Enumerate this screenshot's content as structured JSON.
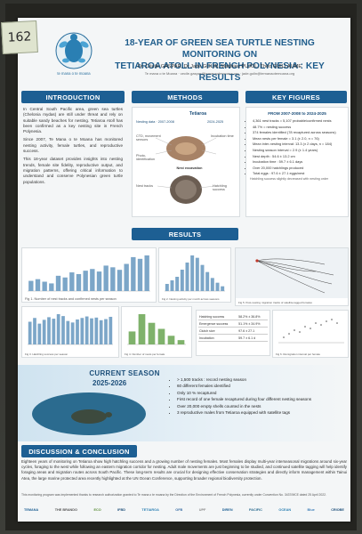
{
  "tag_number": "162",
  "poster": {
    "title_line1": "18-YEAR OF GREEN SEA TURTLE NESTING MONITORING ON",
    "title_line2": "TETIAROA ATOLL IN FRENCH POLYNESIA : KEY RESULTS",
    "authors": "Dr. Cécile GASPAR, Dr Jade GOLIN, Matthieu PUJOL, Théo GUILLAUME",
    "affiliation": "Te mana o te Moana · cecile.gaspar@temanaotemoana.org · jade.golin@temanaotemoana.org",
    "logo_caption": "te mana o te moana"
  },
  "sections": {
    "introduction": "INTRODUCTION",
    "methods": "METHODS",
    "key_figures": "KEY FIGURES",
    "results": "RESULTS",
    "current_season": "CURRENT SEASON",
    "season_years": "2025-2026",
    "discussion": "DISCUSSION & CONCLUSION"
  },
  "intro": {
    "p1": "In Central South Pacific area, green sea turtles (Chelonia mydas) are still under threat and rely on suitable sandy beaches for nesting. Tetiaroa Atoll has been confirmed as a key nesting site in French Polynesia.",
    "p2": "Since 2007, Te Mana o te Moana has monitored nesting activity, female turtles, and reproductive success.",
    "p3": "This 18-year dataset provides insights into nesting trends, female site fidelity, reproductive output, and migration patterns, offering critical information to understand and conserve Polynesian green turtle populations."
  },
  "methods": {
    "place": "Tetiaroa",
    "season_a": "Nesting data · 2007-2008",
    "season_b": "2024-2025",
    "labels": [
      "CTD, movement sensors",
      "Photo-identification",
      "Nest excavation",
      "Nest tracks",
      "Hatchling success",
      "Incubation time"
    ]
  },
  "key_figures": {
    "heading": "FROM 2007-2008 to 2024-2025",
    "items": [
      "4,361 nest tracks = 5,107 probable/confirmed nests",
      "48.7% = nesting success",
      "374 females identified (78 recaptured across seasons)",
      "Mean nests per female = 3.1 (± 2.0, n = 76)",
      "Mean inter-nesting interval: 13.3 (± 2 days, n = 184)",
      "Nesting season interval = 2.9 (± 1.4 years)",
      "Nest depth : 54.6 ± 13.2 cm",
      "Incubation time : 59.7 ± 6.1 days",
      "Over 20,000 hatchlings produced",
      "Total eggs : 97.6 ± 27.1 eggs/nest"
    ],
    "footnote": "Hatchling success slightly decreased with nesting order"
  },
  "results": {
    "captions": [
      "Fig 1. Number of nest tracks and confirmed nests per season",
      "Fig 2. Nesting activity per month across seasons",
      "Fig 3. Hatchling success per season",
      "Fig 4. Number of nests per female",
      "Fig 5. Post-nesting migration tracks of satellite-tagged females",
      "Fig 6. Remigration interval per female"
    ],
    "table_rows": [
      [
        "Hatching success",
        "58.2% ± 36.8%"
      ],
      [
        "Emergence success",
        "51.1% ± 34.9%"
      ],
      [
        "Clutch size",
        "97.6 ± 27.1"
      ],
      [
        "Incubation",
        "59.7 ± 6.1 d"
      ]
    ]
  },
  "season": {
    "items": [
      "> 1,500 tracks : record nesting season",
      "60 different females identified",
      "Only 10 % recaptured",
      "First record of one female recaptured during four different nesting seasons",
      "Over 20,000 empty shells counted in the nests",
      "3 reproductive males from Tetiaroa equipped with satellite tags"
    ]
  },
  "conclusion": "Eighteen years of monitoring on Tetiaroa show high hatchling success and a growing number of nesting females. Most females display multi-year interseasonal migrations around six-year cycles, foraging to the west while following an eastern migration corridor for nesting. Adult male movements are just beginning to be studied, and continued satellite tagging will help identify foraging areas and migration routes across South Pacific. These long-term results are crucial for designing effective conservation strategies and directly inform management within Tainui Atea, the large marine protected area recently highlighted at the UN Ocean Conference, supporting broader regional biodiversity protection.",
  "funding_note": "This monitoring program was implemented thanks to research authorization granted to Te mana o te moana by the Direction of the Environment of French Polynesia, currently under Convention No. 3437/MCE dated 25 April 2022.",
  "partners": [
    "TEMANA",
    "THE BRANDO",
    "ECO",
    "IFBD",
    "TETIAROA",
    "OFB",
    "UPF",
    "DIREN",
    "PACIFIC",
    "OCEAN",
    "Blue",
    "CRIOBE"
  ],
  "chart_data": [
    {
      "type": "bar",
      "categories": [
        "07",
        "08",
        "09",
        "10",
        "11",
        "12",
        "13",
        "14",
        "15",
        "16",
        "17",
        "18",
        "19",
        "20",
        "21",
        "22",
        "23",
        "24"
      ],
      "values": [
        120,
        140,
        110,
        90,
        180,
        160,
        220,
        200,
        240,
        260,
        230,
        300,
        280,
        250,
        320,
        400,
        380,
        420
      ]
    },
    {
      "type": "bar",
      "categories": [
        "J",
        "F",
        "M",
        "A",
        "M",
        "J",
        "J",
        "A",
        "S",
        "O",
        "N",
        "D"
      ],
      "values": [
        30,
        45,
        60,
        90,
        120,
        150,
        140,
        110,
        80,
        55,
        35,
        20
      ]
    },
    {
      "type": "bar",
      "categories": [
        "07",
        "08",
        "09",
        "10",
        "11",
        "12",
        "13",
        "14",
        "15",
        "16",
        "17",
        "18",
        "19",
        "20",
        "21",
        "22",
        "23",
        "24"
      ],
      "values": [
        60,
        70,
        55,
        65,
        72,
        68,
        80,
        75,
        62,
        58,
        66,
        70,
        74,
        69,
        71,
        64,
        67,
        73
      ]
    },
    {
      "type": "bar",
      "categories": [
        "1",
        "2",
        "3",
        "4",
        "5",
        "6"
      ],
      "values": [
        15,
        35,
        25,
        18,
        10,
        5
      ]
    }
  ],
  "colors": {
    "primary": "#1d5f93",
    "accent": "#5c8e3a",
    "bar1": "#7ca6c8",
    "bar2": "#7fb26b"
  }
}
